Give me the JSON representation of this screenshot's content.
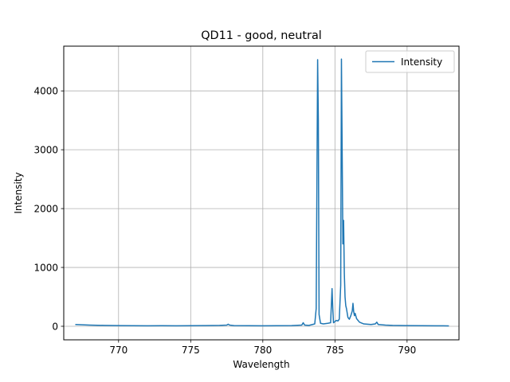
{
  "chart_data": {
    "type": "line",
    "title": "QD11 - good, neutral",
    "xlabel": "Wavelength",
    "ylabel": "Intensity",
    "xlim": [
      766.2,
      793.6
    ],
    "ylim": [
      -230,
      4760
    ],
    "xticks": [
      770,
      775,
      780,
      785,
      790
    ],
    "yticks": [
      0,
      1000,
      2000,
      3000,
      4000
    ],
    "grid": true,
    "legend": {
      "position": "top-right"
    },
    "series": [
      {
        "name": "Intensity",
        "color": "#1f77b4",
        "x": [
          767.0,
          767.5,
          768.0,
          769.0,
          770.0,
          771.0,
          772.0,
          773.0,
          774.0,
          775.0,
          776.0,
          777.0,
          777.5,
          777.6,
          777.7,
          778.0,
          779.0,
          780.0,
          781.0,
          782.0,
          782.7,
          782.8,
          782.9,
          783.2,
          783.6,
          783.7,
          783.8,
          783.85,
          783.9,
          784.0,
          784.2,
          784.5,
          784.7,
          784.8,
          784.85,
          784.9,
          785.0,
          785.1,
          785.2,
          785.3,
          785.4,
          785.45,
          785.5,
          785.55,
          785.6,
          785.65,
          785.7,
          785.75,
          785.8,
          785.9,
          786.0,
          786.1,
          786.2,
          786.25,
          786.3,
          786.35,
          786.4,
          786.5,
          786.7,
          787.0,
          787.5,
          787.8,
          787.9,
          788.0,
          788.5,
          789.0,
          790.0,
          791.0,
          792.0,
          792.5,
          792.9
        ],
        "y": [
          30,
          25,
          20,
          15,
          12,
          10,
          8,
          10,
          8,
          10,
          12,
          15,
          20,
          35,
          20,
          12,
          10,
          8,
          10,
          12,
          20,
          60,
          20,
          15,
          40,
          300,
          4530,
          3500,
          200,
          50,
          40,
          50,
          60,
          640,
          300,
          60,
          80,
          100,
          90,
          120,
          700,
          4540,
          3000,
          1400,
          1800,
          900,
          500,
          350,
          300,
          150,
          120,
          180,
          260,
          390,
          250,
          180,
          220,
          130,
          70,
          40,
          30,
          40,
          70,
          30,
          20,
          15,
          12,
          10,
          8,
          8,
          6
        ]
      }
    ]
  }
}
